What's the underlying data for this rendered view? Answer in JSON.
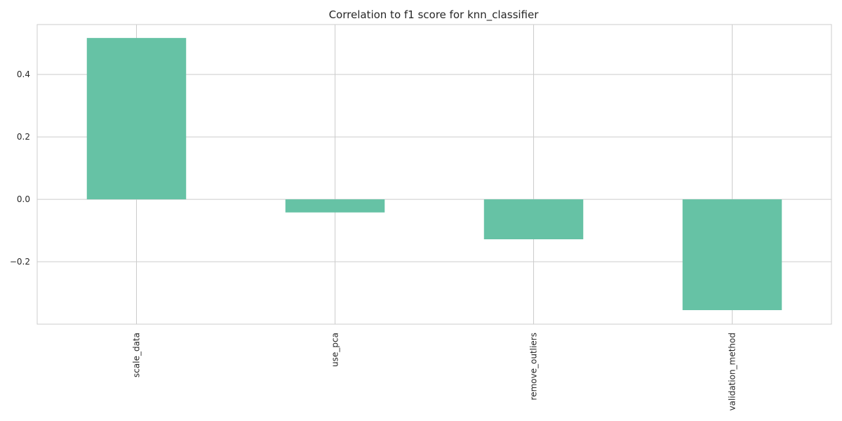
{
  "chart_data": {
    "type": "bar",
    "title": "Correlation to f1 score for knn_classifier",
    "xlabel": "",
    "ylabel": "",
    "categories": [
      "scale_data",
      "use_pca",
      "remove_outliers",
      "validation_method"
    ],
    "values": [
      0.517,
      -0.042,
      -0.128,
      -0.355
    ],
    "ylim": [
      -0.4,
      0.56
    ],
    "yticks": [
      0.4,
      0.2,
      0.0,
      -0.2
    ],
    "ytick_labels": [
      "0.4",
      "0.2",
      "0.0",
      "−0.2"
    ],
    "grid": true,
    "legend": "none",
    "bar_color": "#66c2a5",
    "grid_color": "#cccccc"
  }
}
